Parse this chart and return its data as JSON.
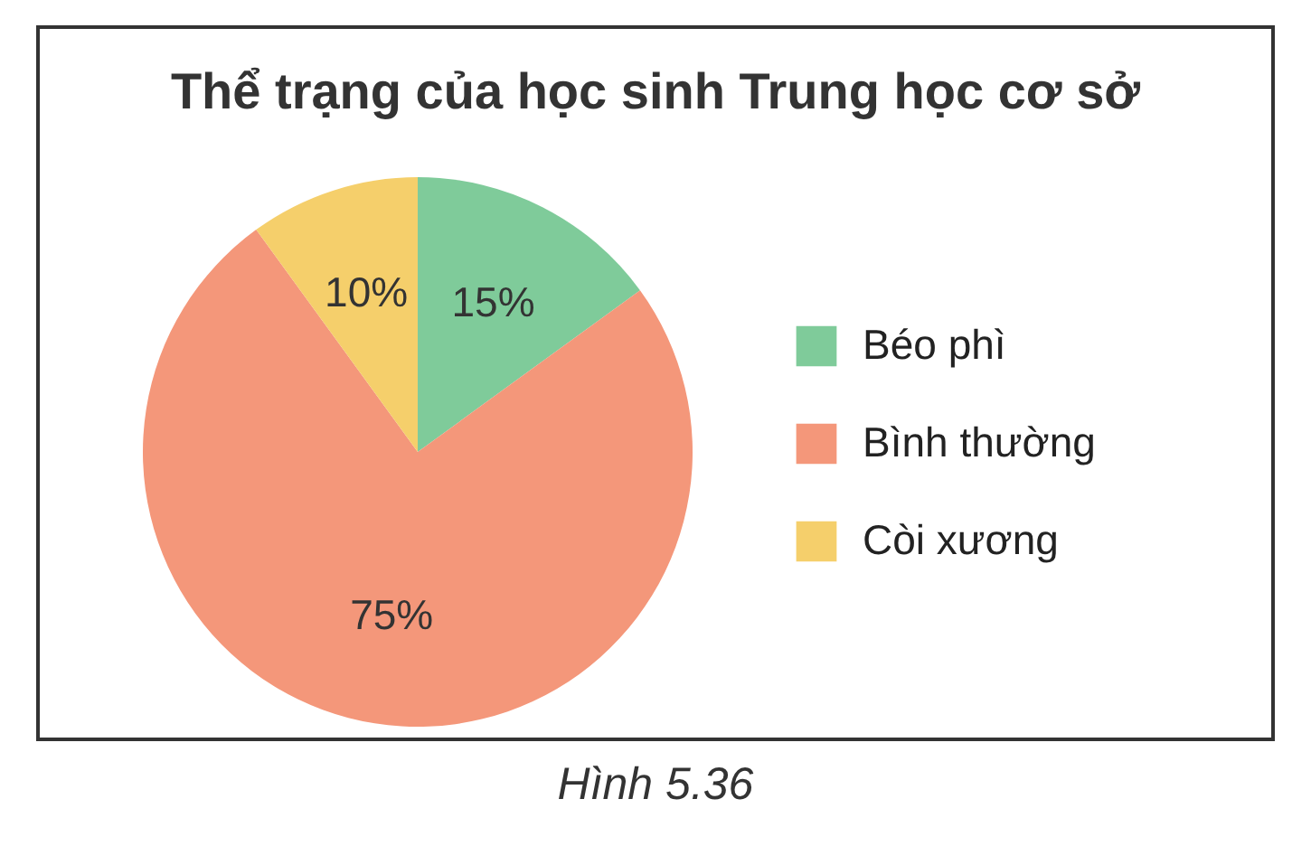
{
  "chart_data": {
    "type": "pie",
    "title": "Thể trạng của học sinh Trung học cơ sở",
    "categories": [
      "Béo phì",
      "Bình thường",
      "Còi xương"
    ],
    "values": [
      15,
      75,
      10
    ],
    "value_labels": [
      "15%",
      "75%",
      "10%"
    ],
    "colors": [
      "#7fcb9a",
      "#f4977a",
      "#f5cf6b"
    ],
    "legend": "right",
    "annotations": [
      "Hình 5.36"
    ]
  }
}
